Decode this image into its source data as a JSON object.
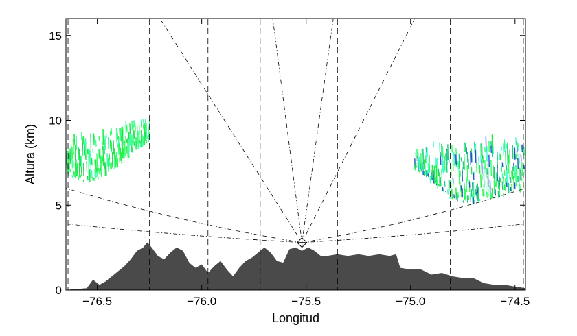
{
  "chart_data": {
    "type": "area",
    "title": "",
    "xlabel": "Longitud",
    "ylabel": "Altura (km)",
    "xlim": [
      -76.65,
      -74.45
    ],
    "ylim": [
      0,
      16
    ],
    "xticks": [
      -76.5,
      -76.0,
      -75.5,
      -75.0,
      -74.5
    ],
    "xtick_labels": [
      "−76.5",
      "−76.0",
      "−75.5",
      "−75.0",
      "−74.5"
    ],
    "yticks": [
      0,
      5,
      10,
      15
    ],
    "ytick_labels": [
      "0",
      "5",
      "10",
      "15"
    ],
    "radar_site": {
      "lon": -75.52,
      "alt": 2.8
    },
    "terrain": {
      "color": "#4a4a4a",
      "lon": [
        -76.65,
        -76.55,
        -76.52,
        -76.49,
        -76.46,
        -76.43,
        -76.4,
        -76.37,
        -76.34,
        -76.31,
        -76.28,
        -76.26,
        -76.24,
        -76.21,
        -76.18,
        -76.15,
        -76.12,
        -76.09,
        -76.06,
        -76.03,
        -76.0,
        -75.97,
        -75.94,
        -75.91,
        -75.88,
        -75.85,
        -75.82,
        -75.79,
        -75.76,
        -75.73,
        -75.7,
        -75.67,
        -75.64,
        -75.61,
        -75.58,
        -75.55,
        -75.52,
        -75.49,
        -75.46,
        -75.43,
        -75.4,
        -75.35,
        -75.3,
        -75.25,
        -75.2,
        -75.15,
        -75.1,
        -75.07,
        -75.05,
        -75.0,
        -74.95,
        -74.9,
        -74.85,
        -74.8,
        -74.75,
        -74.7,
        -74.65,
        -74.6,
        -74.55,
        -74.5,
        -74.45
      ],
      "alt": [
        0.0,
        0.1,
        0.6,
        0.3,
        0.5,
        0.8,
        1.1,
        1.4,
        1.8,
        2.3,
        2.5,
        2.8,
        2.5,
        2.0,
        1.8,
        2.2,
        2.5,
        2.3,
        1.6,
        1.3,
        1.5,
        1.0,
        1.4,
        1.7,
        1.2,
        0.8,
        1.3,
        1.7,
        1.9,
        2.2,
        2.5,
        2.2,
        1.7,
        1.6,
        2.4,
        2.5,
        2.3,
        2.5,
        2.3,
        2.0,
        2.0,
        2.1,
        2.0,
        2.1,
        2.0,
        2.1,
        2.0,
        2.1,
        1.3,
        1.2,
        1.2,
        0.9,
        1.0,
        0.8,
        0.7,
        0.7,
        0.4,
        0.3,
        0.3,
        0.2,
        0.1
      ]
    },
    "beam_lines": {
      "description_free": true,
      "steep_endpoints_lon_at_top": [
        -76.2,
        -75.66,
        -75.37,
        -74.98
      ],
      "shallow_endpoints": [
        {
          "lon": -76.65,
          "alt": 6.0
        },
        {
          "lon": -76.65,
          "alt": 3.9
        },
        {
          "lon": -74.45,
          "alt": 6.0
        },
        {
          "lon": -74.45,
          "alt": 3.9
        }
      ]
    },
    "vertical_dashed_lines_lon": [
      -76.64,
      -76.25,
      -75.97,
      -75.72,
      -75.35,
      -75.08,
      -74.81,
      -74.46
    ],
    "echoes": [
      {
        "lon_range": [
          -76.65,
          -76.25
        ],
        "bottom": [
          [
            -76.65,
            6.9
          ],
          [
            -76.55,
            6.4
          ],
          [
            -76.45,
            6.9
          ],
          [
            -76.35,
            7.9
          ],
          [
            -76.25,
            8.9
          ]
        ],
        "top": [
          [
            -76.65,
            8.9
          ],
          [
            -76.55,
            9.4
          ],
          [
            -76.45,
            9.7
          ],
          [
            -76.35,
            9.9
          ],
          [
            -76.25,
            10.1
          ]
        ],
        "colors": [
          "#22ee44",
          "#33ff66",
          "#44ffaa",
          "#22dd55"
        ]
      },
      {
        "lon_range": [
          -74.98,
          -74.45
        ],
        "bottom": [
          [
            -74.98,
            7.2
          ],
          [
            -74.9,
            6.4
          ],
          [
            -74.8,
            5.4
          ],
          [
            -74.7,
            5.2
          ],
          [
            -74.6,
            5.5
          ],
          [
            -74.45,
            6.0
          ]
        ],
        "top": [
          [
            -74.98,
            8.2
          ],
          [
            -74.9,
            8.8
          ],
          [
            -74.8,
            8.5
          ],
          [
            -74.7,
            9.0
          ],
          [
            -74.6,
            9.2
          ],
          [
            -74.45,
            8.7
          ]
        ],
        "colors": [
          "#22ee44",
          "#33ff66",
          "#44ffcc",
          "#2255cc",
          "#22cc88"
        ]
      }
    ],
    "grid": false,
    "legend": "none"
  }
}
